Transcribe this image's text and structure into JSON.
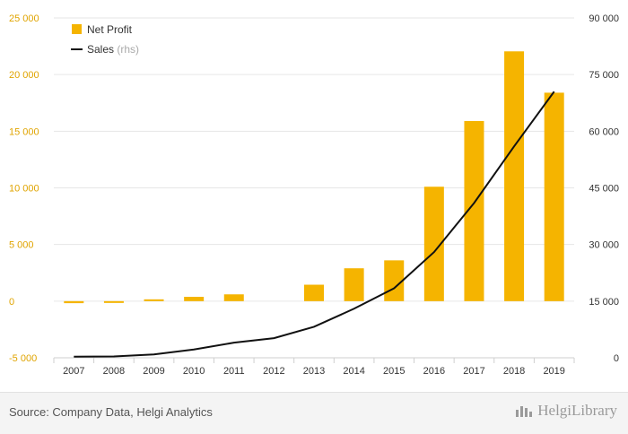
{
  "chart_data": {
    "type": "bar",
    "categories": [
      "2007",
      "2008",
      "2009",
      "2010",
      "2011",
      "2012",
      "2013",
      "2014",
      "2015",
      "2016",
      "2017",
      "2018",
      "2019"
    ],
    "series": [
      {
        "name": "Net Profit",
        "axis": "left",
        "type": "bar",
        "values": [
          -180,
          -120,
          120,
          380,
          600,
          0,
          1450,
          2900,
          3600,
          10100,
          15900,
          22050,
          18400
        ]
      },
      {
        "name": "Sales",
        "axis": "right",
        "type": "line",
        "values": [
          300,
          350,
          900,
          2200,
          4000,
          5200,
          8200,
          13000,
          18400,
          28000,
          41000,
          56000,
          70500
        ]
      }
    ],
    "y_left": {
      "ylim": [
        -5000,
        25000
      ],
      "ticks": [
        -5000,
        0,
        5000,
        10000,
        15000,
        20000,
        25000
      ],
      "tick_labels": [
        "-5 000",
        "0",
        "5 000",
        "10 000",
        "15 000",
        "20 000",
        "25 000"
      ]
    },
    "y_right": {
      "ylim": [
        0,
        90000
      ],
      "ticks": [
        0,
        15000,
        30000,
        45000,
        60000,
        75000,
        90000
      ],
      "tick_labels": [
        "0",
        "15 000",
        "30 000",
        "45 000",
        "60 000",
        "75 000",
        "90 000"
      ]
    },
    "legend": {
      "placement": "top-left",
      "items": [
        {
          "label": "Net Profit",
          "suffix": ""
        },
        {
          "label": "Sales",
          "suffix": "(rhs)"
        }
      ]
    },
    "grid": true,
    "colors": {
      "bar": "#f5b400",
      "line": "#111111",
      "grid": "#e6e6e6",
      "left_ticks": "#e0a400"
    }
  },
  "footer": {
    "source": "Source: Company Data, Helgi Analytics",
    "brand": "HelgiLibrary"
  }
}
